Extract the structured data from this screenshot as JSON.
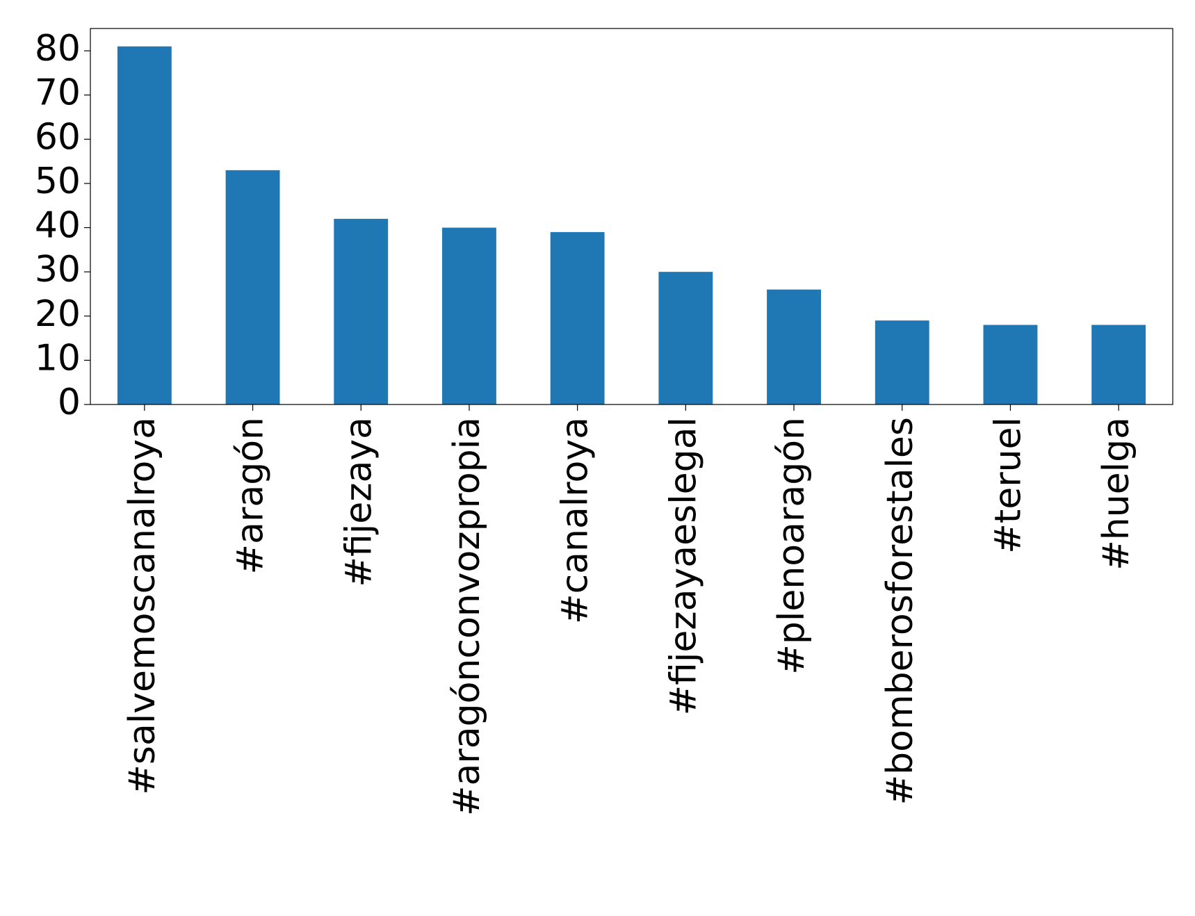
{
  "chart_data": {
    "type": "bar",
    "categories": [
      "#salvemoscanalroya",
      "#aragón",
      "#fijezaya",
      "#aragónconvozpropia",
      "#canalroya",
      "#fijezayaeslegal",
      "#plenoaragón",
      "#bomberosforestales",
      "#teruel",
      "#huelga"
    ],
    "values": [
      81,
      53,
      42,
      40,
      39,
      30,
      26,
      19,
      18,
      18
    ],
    "color": "#1f77b4",
    "ylim": [
      0,
      85.05
    ],
    "yticks": [
      0,
      10,
      20,
      30,
      40,
      50,
      60,
      70,
      80
    ],
    "grid": false
  }
}
